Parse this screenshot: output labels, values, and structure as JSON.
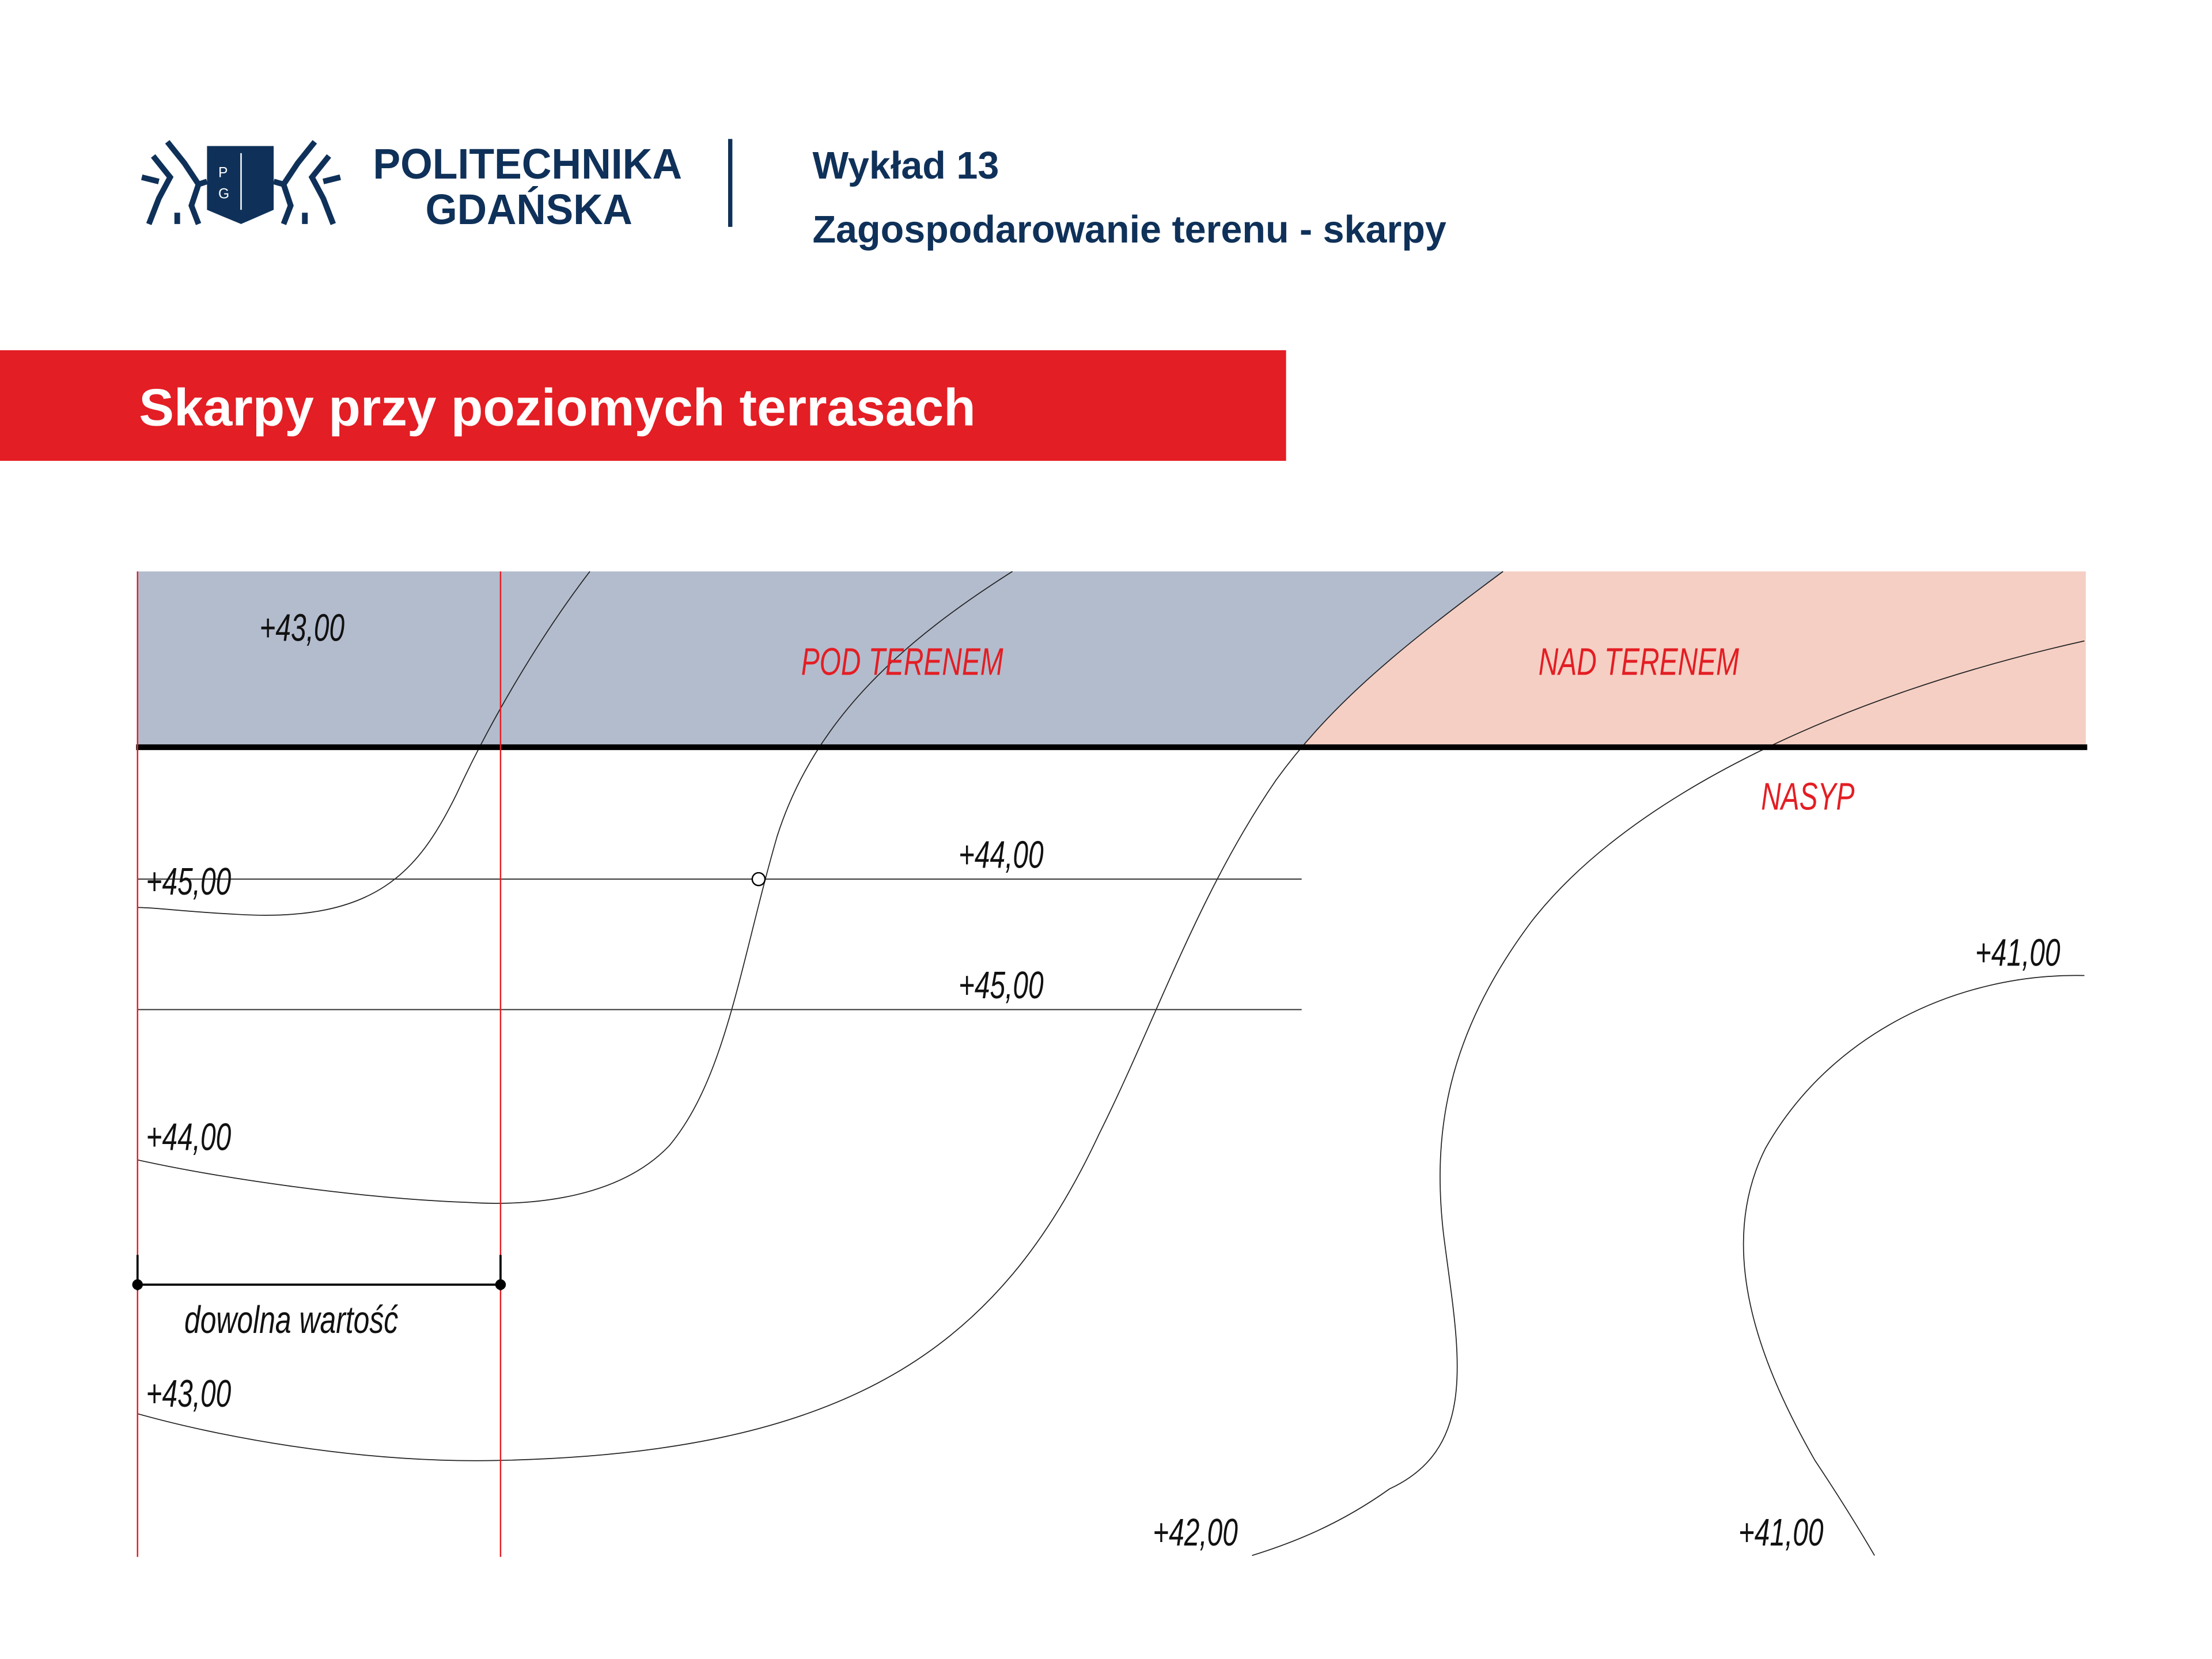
{
  "header": {
    "logo_line1": "POLITECHNIKA",
    "logo_line2": "GDAŃSKA",
    "crest_letters": [
      "P",
      "G"
    ],
    "lecture": "Wykład 13",
    "subtitle": "Zagospodarowanie terenu - skarpy"
  },
  "banner": {
    "title": "Skarpy przy poziomych terrasach"
  },
  "diagram": {
    "zone_below": "POD  TERENEM",
    "zone_above": "NAD  TERENEM",
    "fill_label": "NASYP",
    "dimension_label": "dowolna  wartość",
    "elevations": {
      "top_terrace": "+43,00",
      "contour_45_left": "+45,00",
      "terrace_44": "+44,00",
      "terrace_45": "+45,00",
      "contour_41_right": "+41,00",
      "contour_44_left": "+44,00",
      "contour_43_left": "+43,00",
      "contour_42_bottom": "+42,00",
      "contour_41_bottom": "+41,00"
    }
  },
  "colors": {
    "brand_navy": "#0f3159",
    "banner_red": "#e31e24",
    "cut_zone": "#b3bccd",
    "fill_zone": "#f5cfc4"
  }
}
